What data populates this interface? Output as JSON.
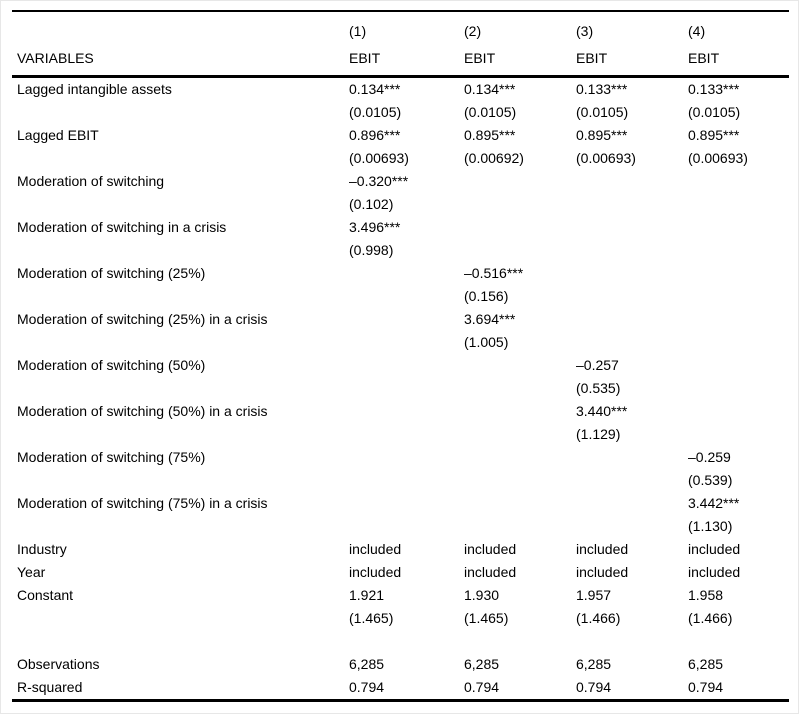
{
  "table": {
    "colors": {
      "text": "#000000",
      "background": "#ffffff",
      "rule": "#000000"
    },
    "header": {
      "variables_label": "VARIABLES",
      "models": [
        "(1)",
        "(2)",
        "(3)",
        "(4)"
      ],
      "dep_vars": [
        "EBIT",
        "EBIT",
        "EBIT",
        "EBIT"
      ]
    },
    "rows": [
      {
        "label": "Lagged intangible assets",
        "cells": [
          "0.134***",
          "0.134***",
          "0.133***",
          "0.133***"
        ]
      },
      {
        "label": "",
        "cells": [
          "(0.0105)",
          "(0.0105)",
          "(0.0105)",
          "(0.0105)"
        ]
      },
      {
        "label": "Lagged EBIT",
        "cells": [
          "0.896***",
          "0.895***",
          "0.895***",
          "0.895***"
        ]
      },
      {
        "label": "",
        "cells": [
          "(0.00693)",
          "(0.00692)",
          "(0.00693)",
          "(0.00693)"
        ]
      },
      {
        "label": "Moderation of switching",
        "cells": [
          "–0.320***",
          "",
          "",
          ""
        ]
      },
      {
        "label": "",
        "cells": [
          "(0.102)",
          "",
          "",
          ""
        ]
      },
      {
        "label": "Moderation of switching in a crisis",
        "cells": [
          "3.496***",
          "",
          "",
          ""
        ]
      },
      {
        "label": "",
        "cells": [
          "(0.998)",
          "",
          "",
          ""
        ]
      },
      {
        "label": "Moderation of switching (25%)",
        "cells": [
          "",
          "–0.516***",
          "",
          ""
        ]
      },
      {
        "label": "",
        "cells": [
          "",
          "(0.156)",
          "",
          ""
        ]
      },
      {
        "label": "Moderation of switching (25%) in a crisis",
        "cells": [
          "",
          "3.694***",
          "",
          ""
        ]
      },
      {
        "label": "",
        "cells": [
          "",
          "(1.005)",
          "",
          ""
        ]
      },
      {
        "label": "Moderation of switching (50%)",
        "cells": [
          "",
          "",
          "–0.257",
          ""
        ]
      },
      {
        "label": "",
        "cells": [
          "",
          "",
          "(0.535)",
          ""
        ]
      },
      {
        "label": "Moderation of switching (50%) in a crisis",
        "cells": [
          "",
          "",
          "3.440***",
          ""
        ]
      },
      {
        "label": "",
        "cells": [
          "",
          "",
          "(1.129)",
          ""
        ]
      },
      {
        "label": "Moderation of switching (75%)",
        "cells": [
          "",
          "",
          "",
          "–0.259"
        ]
      },
      {
        "label": "",
        "cells": [
          "",
          "",
          "",
          "(0.539)"
        ]
      },
      {
        "label": "Moderation of switching (75%) in a crisis",
        "cells": [
          "",
          "",
          "",
          "3.442***"
        ]
      },
      {
        "label": "",
        "cells": [
          "",
          "",
          "",
          "(1.130)"
        ]
      },
      {
        "label": "Industry",
        "cells": [
          "included",
          "included",
          "included",
          "included"
        ]
      },
      {
        "label": "Year",
        "cells": [
          "included",
          "included",
          "included",
          "included"
        ]
      },
      {
        "label": "Constant",
        "cells": [
          "1.921",
          "1.930",
          "1.957",
          "1.958"
        ]
      },
      {
        "label": "",
        "cells": [
          "(1.465)",
          "(1.465)",
          "(1.466)",
          "(1.466)"
        ]
      },
      {
        "label": "",
        "cells": [
          "",
          "",
          "",
          ""
        ]
      },
      {
        "label": "Observations",
        "cells": [
          "6,285",
          "6,285",
          "6,285",
          "6,285"
        ]
      },
      {
        "label": "R-squared",
        "cells": [
          "0.794",
          "0.794",
          "0.794",
          "0.794"
        ]
      }
    ]
  }
}
